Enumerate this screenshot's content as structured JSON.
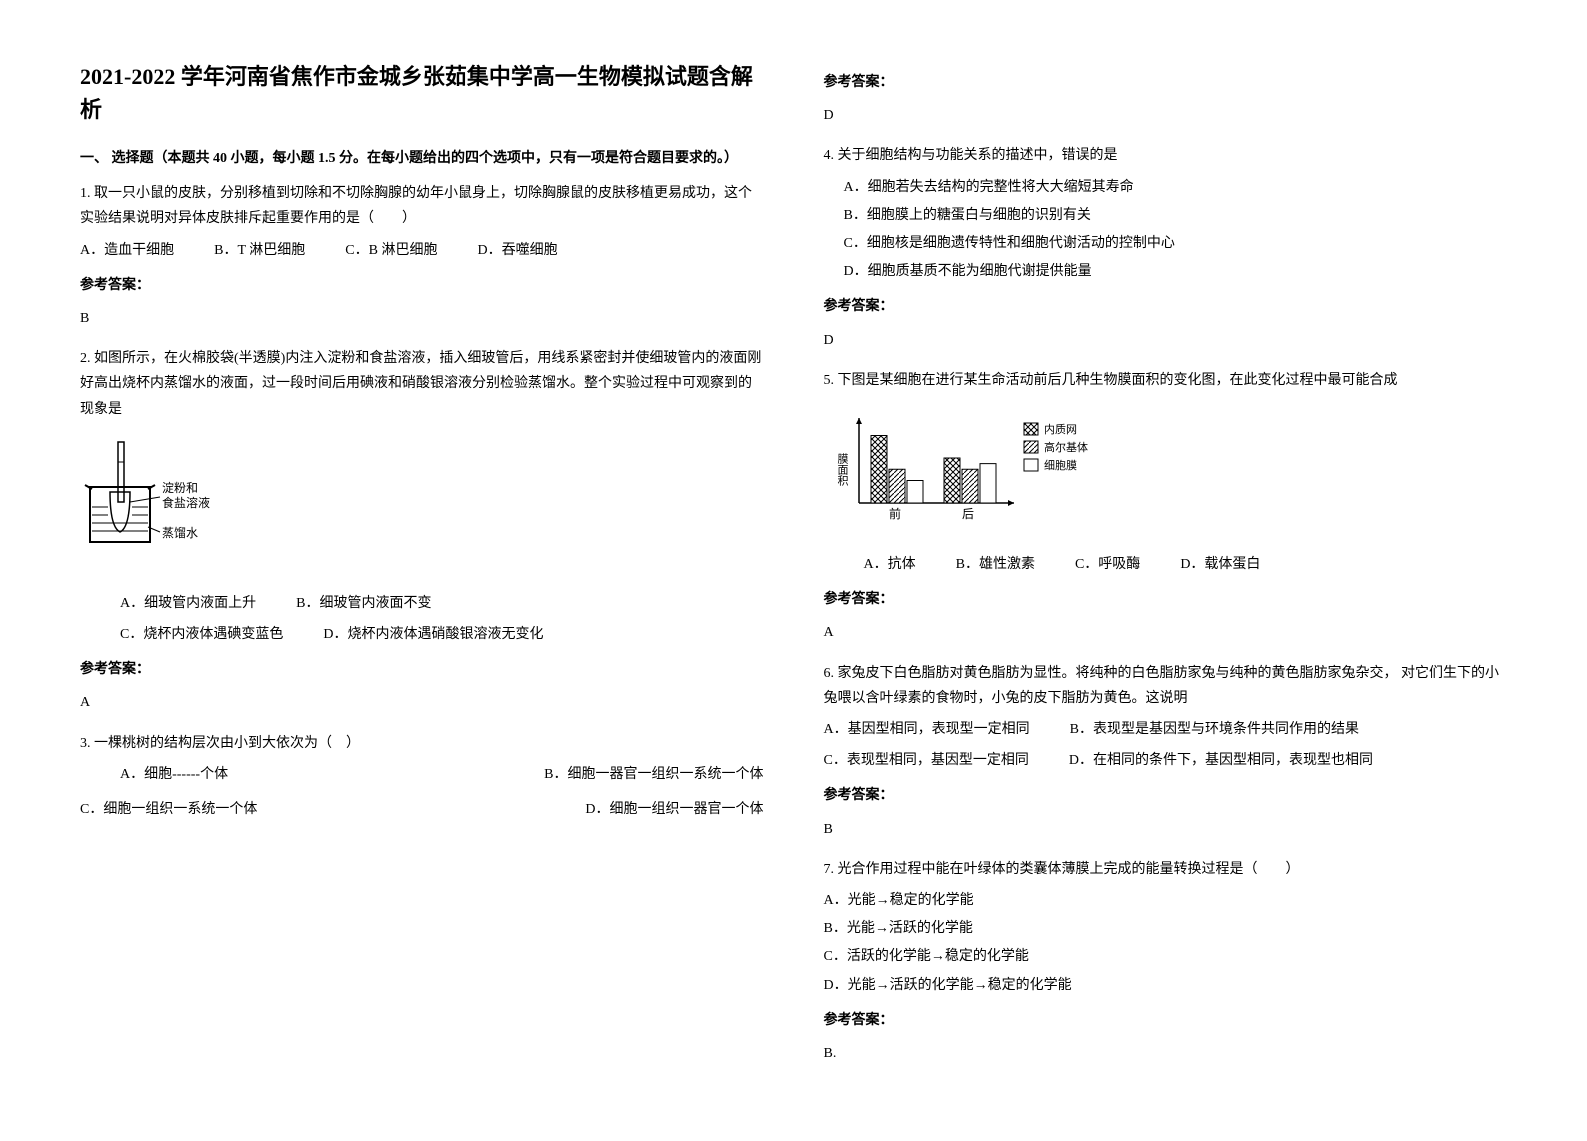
{
  "title": "2021-2022 学年河南省焦作市金城乡张茹集中学高一生物模拟试题含解析",
  "section1_header": "一、 选择题（本题共 40 小题，每小题 1.5 分。在每小题给出的四个选项中，只有一项是符合题目要求的。）",
  "q1": {
    "text": "1. 取一只小鼠的皮肤，分别移植到切除和不切除胸腺的幼年小鼠身上，切除胸腺鼠的皮肤移植更易成功，这个实验结果说明对异体皮肤排斥起重要作用的是（　　）",
    "optA": "A．造血干细胞",
    "optB": "B．T 淋巴细胞",
    "optC": "C．B 淋巴细胞",
    "optD": "D．吞噬细胞",
    "answer_label": "参考答案：",
    "answer": "B"
  },
  "q2": {
    "text": "2. 如图所示，在火棉胶袋(半透膜)内注入淀粉和食盐溶液，插入细玻管后，用线系紧密封并使细玻管内的液面刚好高出烧杯内蒸馏水的液面，过一段时间后用碘液和硝酸银溶液分别检验蒸馏水。整个实验过程中可观察到的现象是",
    "diagram_label1": "淀粉和食盐溶液",
    "diagram_label2": "蒸馏水",
    "optA": "A．细玻管内液面上升",
    "optB": "B．细玻管内液面不变",
    "optC": "C．烧杯内液体遇碘变蓝色",
    "optD": "D．烧杯内液体遇硝酸银溶液无变化",
    "answer_label": "参考答案：",
    "answer": "A"
  },
  "q3": {
    "text": "3. 一棵桃树的结构层次由小到大依次为（　）",
    "optA": "A．细胞------个体",
    "optB": "B．细胞一器官一组织一系统一个体",
    "optC": "C．细胞一组织一系统一个体",
    "optD": "D．细胞一组织一器官一个体",
    "answer_label": "参考答案：",
    "answer": "D"
  },
  "q4": {
    "text": "4. 关于细胞结构与功能关系的描述中，错误的是",
    "optA": "A．细胞若失去结构的完整性将大大缩短其寿命",
    "optB": "B．细胞膜上的糖蛋白与细胞的识别有关",
    "optC": "C．细胞核是细胞遗传特性和细胞代谢活动的控制中心",
    "optD": "D．细胞质基质不能为细胞代谢提供能量",
    "answer_label": "参考答案：",
    "answer": "D"
  },
  "q5": {
    "text": "5. 下图是某细胞在进行某生命活动前后几种生物膜面积的变化图，在此变化过程中最可能合成",
    "chart": {
      "ylabel": "膜面积",
      "xlabels": [
        "前",
        "后"
      ],
      "legend": [
        "内质网",
        "高尔基体",
        "细胞膜"
      ],
      "colors": [
        "#888888",
        "#cccccc",
        "#ffffff"
      ],
      "before": [
        60,
        30,
        20
      ],
      "after": [
        40,
        30,
        35
      ],
      "stroke": "#000000",
      "grid_color": "#000000"
    },
    "optA": "A．抗体",
    "optB": "B．雄性激素",
    "optC": "C．呼吸酶",
    "optD": "D．载体蛋白",
    "answer_label": "参考答案：",
    "answer": "A"
  },
  "q6": {
    "text": "6. 家兔皮下白色脂肪对黄色脂肪为显性。将纯种的白色脂肪家兔与纯种的黄色脂肪家兔杂交，  对它们生下的小兔喂以含叶绿素的食物时，小兔的皮下脂肪为黄色。这说明",
    "optA": "A．基因型相同，表现型一定相同",
    "optB": "B．表现型是基因型与环境条件共同作用的结果",
    "optC": "C．表现型相同，基因型一定相同",
    "optD": "D．在相同的条件下，基因型相同，表现型也相同",
    "answer_label": "参考答案：",
    "answer": "B"
  },
  "q7": {
    "text": "7. 光合作用过程中能在叶绿体的类囊体薄膜上完成的能量转换过程是（　　）",
    "optA": "A．光能→稳定的化学能",
    "optB": "B．光能→活跃的化学能",
    "optC": "C．活跃的化学能→稳定的化学能",
    "optD": "D．光能→活跃的化学能→稳定的化学能",
    "answer_label": "参考答案：",
    "answer": "B."
  }
}
